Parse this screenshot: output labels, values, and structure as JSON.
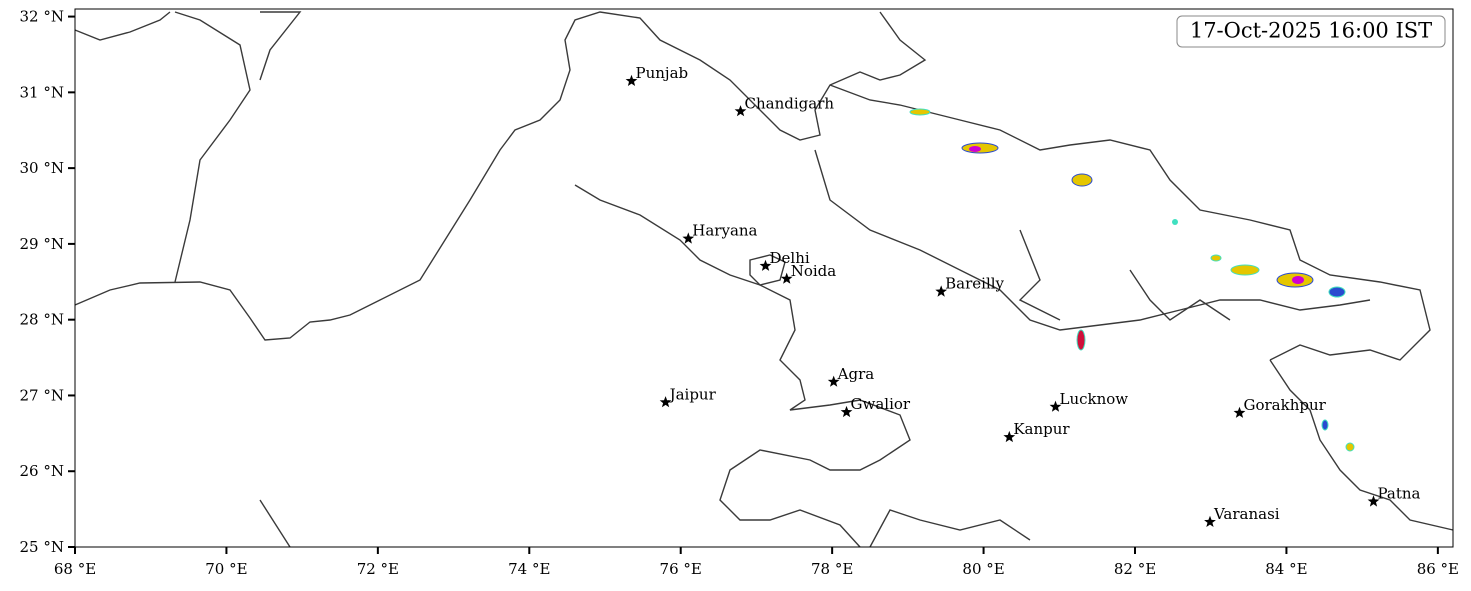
{
  "chart_data": {
    "type": "map",
    "title": "17-Oct-2025 16:00 IST",
    "xlim": [
      68,
      86.2
    ],
    "ylim": [
      25,
      32.1
    ],
    "xticks": [
      {
        "value": 68,
        "label": "68 °E"
      },
      {
        "value": 70,
        "label": "70 °E"
      },
      {
        "value": 72,
        "label": "72 °E"
      },
      {
        "value": 74,
        "label": "74 °E"
      },
      {
        "value": 76,
        "label": "76 °E"
      },
      {
        "value": 78,
        "label": "78 °E"
      },
      {
        "value": 80,
        "label": "80 °E"
      },
      {
        "value": 82,
        "label": "82 °E"
      },
      {
        "value": 84,
        "label": "84 °E"
      },
      {
        "value": 86,
        "label": "86 °E"
      }
    ],
    "yticks": [
      {
        "value": 25,
        "label": "25 °N"
      },
      {
        "value": 26,
        "label": "26 °N"
      },
      {
        "value": 27,
        "label": "27 °N"
      },
      {
        "value": 28,
        "label": "28 °N"
      },
      {
        "value": 29,
        "label": "29 °N"
      },
      {
        "value": 30,
        "label": "30 °N"
      },
      {
        "value": 31,
        "label": "31 °N"
      },
      {
        "value": 32,
        "label": "32 °N"
      }
    ],
    "cities": [
      {
        "name": "Punjab",
        "lon": 75.35,
        "lat": 31.15
      },
      {
        "name": "Chandigarh",
        "lon": 76.79,
        "lat": 30.75
      },
      {
        "name": "Haryana",
        "lon": 76.1,
        "lat": 29.07
      },
      {
        "name": "Delhi",
        "lon": 77.12,
        "lat": 28.71
      },
      {
        "name": "Noida",
        "lon": 77.4,
        "lat": 28.54
      },
      {
        "name": "Bareilly",
        "lon": 79.44,
        "lat": 28.37
      },
      {
        "name": "Agra",
        "lon": 78.02,
        "lat": 27.18
      },
      {
        "name": "Jaipur",
        "lon": 75.8,
        "lat": 26.91
      },
      {
        "name": "Gwalior",
        "lon": 78.19,
        "lat": 26.78
      },
      {
        "name": "Lucknow",
        "lon": 80.95,
        "lat": 26.85
      },
      {
        "name": "Kanpur",
        "lon": 80.34,
        "lat": 26.45
      },
      {
        "name": "Gorakhpur",
        "lon": 83.38,
        "lat": 26.77
      },
      {
        "name": "Varanasi",
        "lon": 82.99,
        "lat": 25.33
      },
      {
        "name": "Patna",
        "lon": 85.15,
        "lat": 25.6
      }
    ]
  }
}
